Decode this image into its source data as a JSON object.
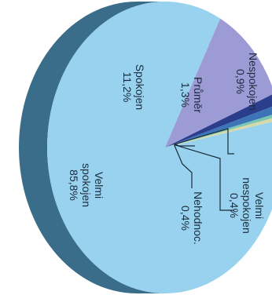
{
  "chart_data": {
    "type": "pie",
    "title": "",
    "categories": [
      "Velmi spokojen",
      "Spokojen",
      "Průměr",
      "Nespokojen",
      "Velmi nespokojen",
      "Nehodnoc."
    ],
    "values": [
      85.8,
      11.2,
      1.3,
      0.9,
      0.4,
      0.4
    ],
    "labels": [
      {
        "lines": [
          "Velmi",
          "spokojen",
          "85,8%"
        ]
      },
      {
        "lines": [
          "Spokojen",
          "11,2%"
        ]
      },
      {
        "lines": [
          "Průměr",
          "1,3%"
        ]
      },
      {
        "lines": [
          "Nespokojen",
          "0,9%"
        ]
      },
      {
        "lines": [
          "Velmi",
          "nespokojen",
          "0,4%"
        ]
      },
      {
        "lines": [
          "Nehodnoc.",
          "0,4%"
        ]
      }
    ],
    "colors": [
      "#98d2ef",
      "#9d9bd6",
      "#2b3e8e",
      "#3b75b7",
      "#78c7b0",
      "#d7d9a8"
    ],
    "side_color": "#3a6d8a",
    "orientation": "rotated 90° clockwise (3D tilted pie)"
  }
}
